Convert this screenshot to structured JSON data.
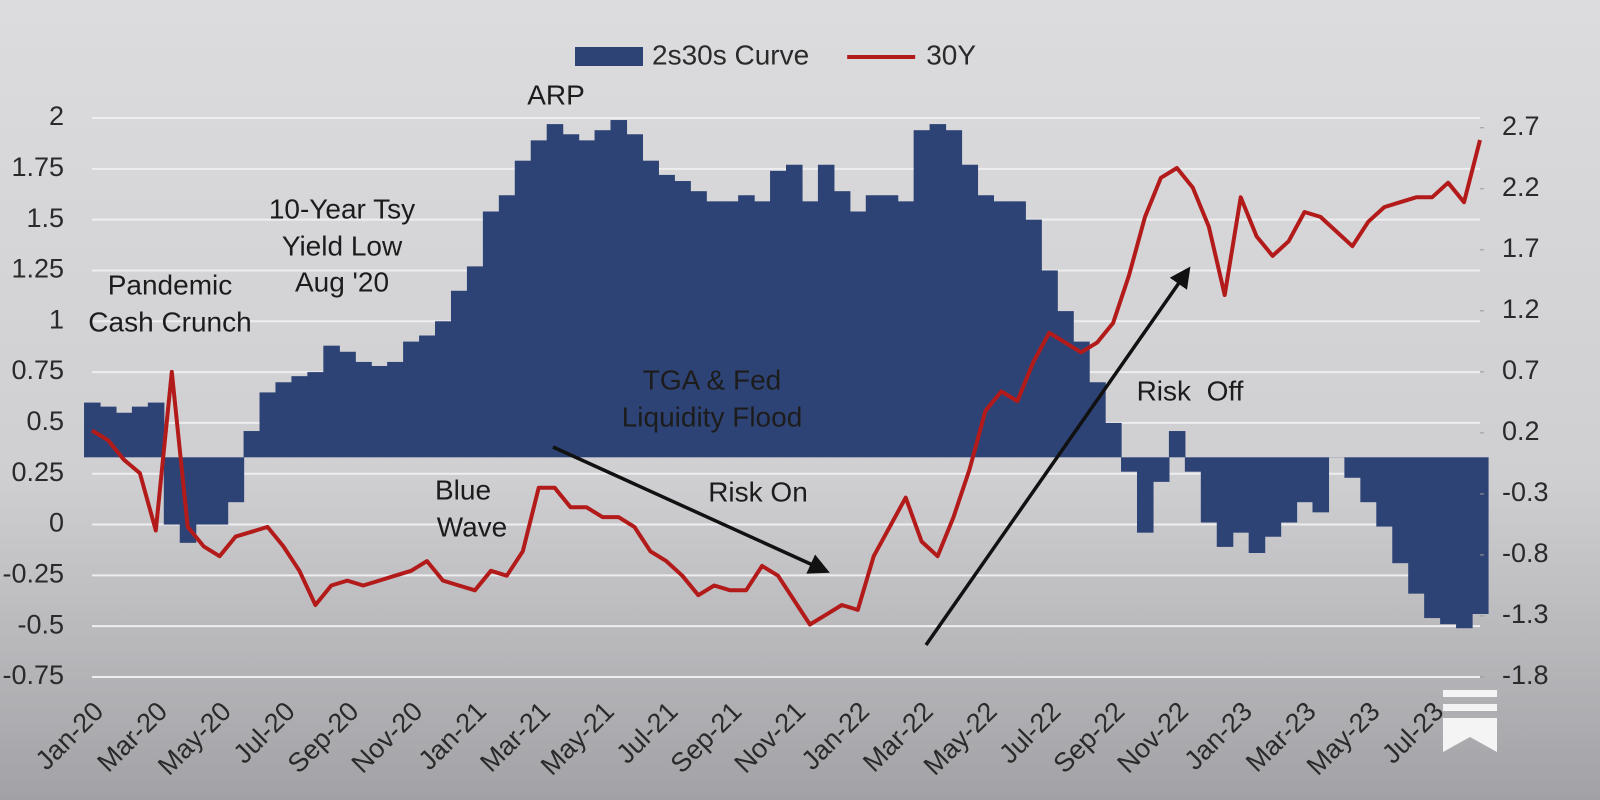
{
  "chart_data": {
    "type": "combo",
    "categories": [
      "Jan-20",
      null,
      null,
      null,
      "Mar-20",
      null,
      null,
      null,
      "May-20",
      null,
      null,
      null,
      "Jul-20",
      null,
      null,
      null,
      "Sep-20",
      null,
      null,
      null,
      "Nov-20",
      null,
      null,
      null,
      "Jan-21",
      null,
      null,
      null,
      "Mar-21",
      null,
      null,
      null,
      "May-21",
      null,
      null,
      null,
      "Jul-21",
      null,
      null,
      null,
      "Sep-21",
      null,
      null,
      null,
      "Nov-21",
      null,
      null,
      null,
      "Jan-22",
      null,
      null,
      null,
      "Mar-22",
      null,
      null,
      null,
      "May-22",
      null,
      null,
      null,
      "Jul-22",
      null,
      null,
      null,
      "Sep-22",
      null,
      null,
      null,
      "Nov-22",
      null,
      null,
      null,
      "Jan-23",
      null,
      null,
      null,
      "Mar-23",
      null,
      null,
      null,
      "May-23",
      null,
      null,
      null,
      "Jul-23",
      null,
      null,
      null
    ],
    "series": [
      {
        "name": "2s30s Curve",
        "type": "bar",
        "color": "#2e4375",
        "values": [
          0.6,
          0.58,
          0.55,
          0.58,
          0.6,
          0.0,
          -0.09,
          0.0,
          0.0,
          0.11,
          0.46,
          0.65,
          0.7,
          0.73,
          0.75,
          0.88,
          0.85,
          0.8,
          0.78,
          0.8,
          0.9,
          0.93,
          1.0,
          1.15,
          1.27,
          1.54,
          1.62,
          1.79,
          1.89,
          1.97,
          1.92,
          1.89,
          1.94,
          1.99,
          1.92,
          1.79,
          1.72,
          1.69,
          1.64,
          1.59,
          1.59,
          1.62,
          1.59,
          1.74,
          1.77,
          1.59,
          1.77,
          1.64,
          1.54,
          1.62,
          1.62,
          1.59,
          1.94,
          1.97,
          1.94,
          1.77,
          1.62,
          1.59,
          1.59,
          1.5,
          1.25,
          1.05,
          0.9,
          0.7,
          0.5,
          0.26,
          -0.04,
          0.21,
          0.46,
          0.26,
          0.01,
          -0.11,
          -0.04,
          -0.14,
          -0.06,
          0.01,
          0.11,
          0.06,
          0.33,
          0.23,
          0.11,
          -0.01,
          -0.19,
          -0.34,
          -0.46,
          -0.49,
          -0.51,
          -0.44
        ]
      },
      {
        "name": "30Y",
        "type": "line",
        "axis": "y2",
        "color": "#b31b1b",
        "values": [
          0.22,
          0.14,
          -0.02,
          -0.13,
          -0.6,
          0.7,
          -0.57,
          -0.73,
          -0.81,
          -0.65,
          -0.61,
          -0.57,
          -0.73,
          -0.93,
          -1.21,
          -1.05,
          -1.01,
          -1.05,
          -1.01,
          -0.97,
          -0.93,
          -0.85,
          -1.01,
          -1.05,
          -1.09,
          -0.93,
          -0.97,
          -0.77,
          -0.25,
          -0.25,
          -0.41,
          -0.41,
          -0.49,
          -0.49,
          -0.57,
          -0.77,
          -0.85,
          -0.97,
          -1.13,
          -1.05,
          -1.09,
          -1.09,
          -0.89,
          -0.97,
          -1.17,
          -1.37,
          -1.29,
          -1.21,
          -1.25,
          -0.81,
          -0.57,
          -0.33,
          -0.69,
          -0.81,
          -0.49,
          -0.1,
          0.38,
          0.54,
          0.46,
          0.78,
          1.02,
          0.94,
          0.86,
          0.94,
          1.1,
          1.49,
          1.97,
          2.29,
          2.37,
          2.21,
          1.89,
          1.33,
          2.13,
          1.81,
          1.65,
          1.77,
          2.01,
          1.97,
          1.85,
          1.73,
          1.93,
          2.05,
          2.09,
          2.13,
          2.13,
          2.25,
          2.09,
          2.6
        ]
      }
    ],
    "ylim": [
      -0.75,
      2
    ],
    "yticks": [
      -0.75,
      -0.5,
      -0.25,
      0,
      0.25,
      0.5,
      0.75,
      1,
      1.25,
      1.5,
      1.75,
      2
    ],
    "y2lim": [
      -1.8,
      2.78
    ],
    "y2ticks": [
      -1.8,
      -1.3,
      -0.8,
      -0.3,
      0.2,
      0.7,
      1.2,
      1.7,
      2.2,
      2.7
    ],
    "grid": true,
    "legend": "top",
    "annotations": [
      [
        "ARP"
      ],
      [
        "10-Year Tsy",
        "Yield Low",
        "Aug '20"
      ],
      [
        "Pandemic",
        "Cash Crunch"
      ],
      [
        "TGA & Fed",
        "Liquidity Flood"
      ],
      [
        "Blue",
        "Wave"
      ],
      [
        "Risk On"
      ],
      [
        "Risk  Off"
      ]
    ]
  }
}
